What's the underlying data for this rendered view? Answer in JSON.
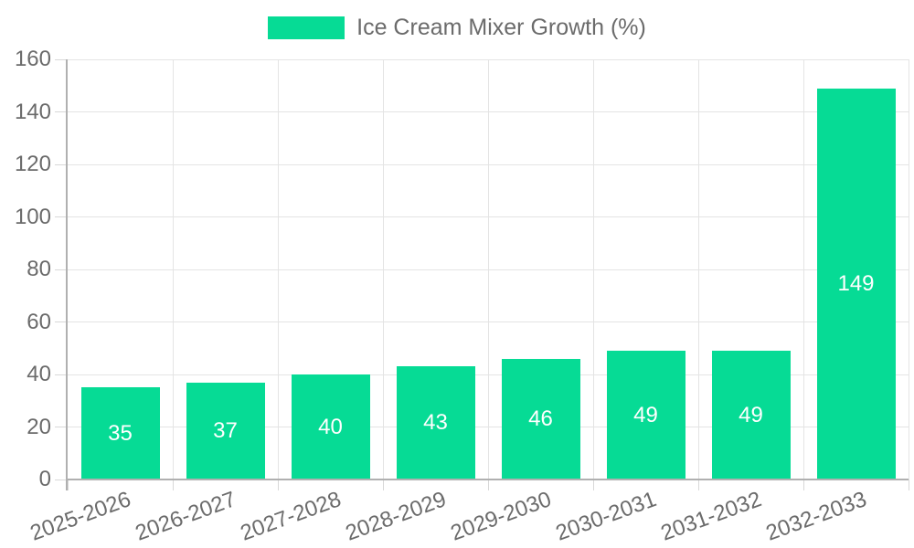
{
  "chart_data": {
    "type": "bar",
    "title": "Ice Cream Mixer Growth (%)",
    "legend": {
      "position": "top",
      "label": "Ice Cream Mixer Growth (%)"
    },
    "categories": [
      "2025-2026",
      "2026-2027",
      "2027-2028",
      "2028-2029",
      "2029-2030",
      "2030-2031",
      "2031-2032",
      "2032-2033"
    ],
    "series": [
      {
        "name": "Ice Cream Mixer Growth (%)",
        "values": [
          35,
          37,
          40,
          43,
          46,
          49,
          49,
          149
        ]
      }
    ],
    "value_labels": [
      35,
      37,
      40,
      43,
      46,
      49,
      49,
      149
    ],
    "xlabel": "",
    "ylabel": "",
    "ylim": [
      0,
      160
    ],
    "yticks": [
      0,
      20,
      40,
      60,
      80,
      100,
      120,
      140,
      160
    ],
    "grid": true,
    "x_label_rotation_deg": -20,
    "colors": {
      "bar": "#06DB95",
      "value_label": "#FFFFFF",
      "axis_text": "#6B6B6B",
      "legend_text": "#6B6B6B",
      "gridline": "#E4E4E4",
      "tick": "#D8D8D8",
      "axis_line": "#B0B0B0",
      "background": "#FFFFFF"
    }
  }
}
